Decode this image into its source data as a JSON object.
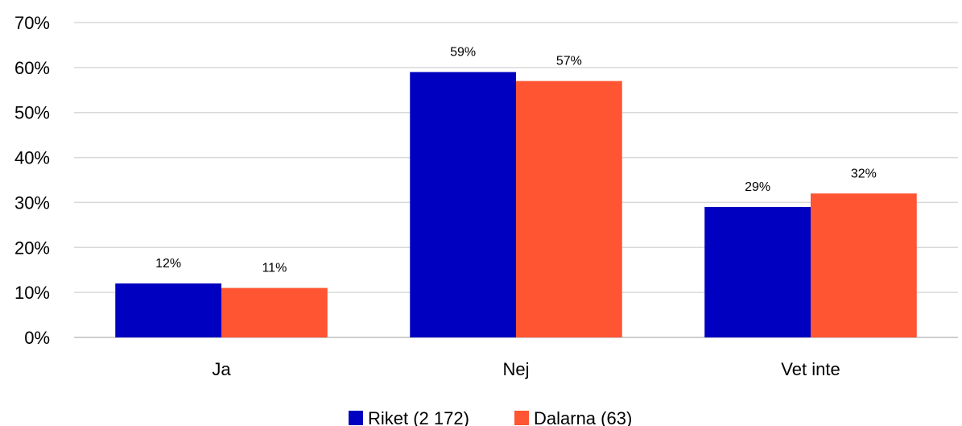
{
  "chart_data": {
    "type": "bar",
    "categories": [
      "Ja",
      "Nej",
      "Vet inte"
    ],
    "series": [
      {
        "name": "Riket (2 172)",
        "values": [
          12,
          59,
          29
        ],
        "labels": [
          "12%",
          "59%",
          "29%"
        ],
        "color": "#0000c0"
      },
      {
        "name": "Dalarna (63)",
        "values": [
          11,
          57,
          32
        ],
        "labels": [
          "11%",
          "57%",
          "32%"
        ],
        "color": "#ff5533"
      }
    ],
    "ylim": [
      0,
      70
    ],
    "yticks": [
      0,
      10,
      20,
      30,
      40,
      50,
      60,
      70
    ],
    "ytick_labels": [
      "0%",
      "10%",
      "20%",
      "30%",
      "40%",
      "50%",
      "60%",
      "70%"
    ],
    "grid": true,
    "legend_position": "bottom-center"
  }
}
